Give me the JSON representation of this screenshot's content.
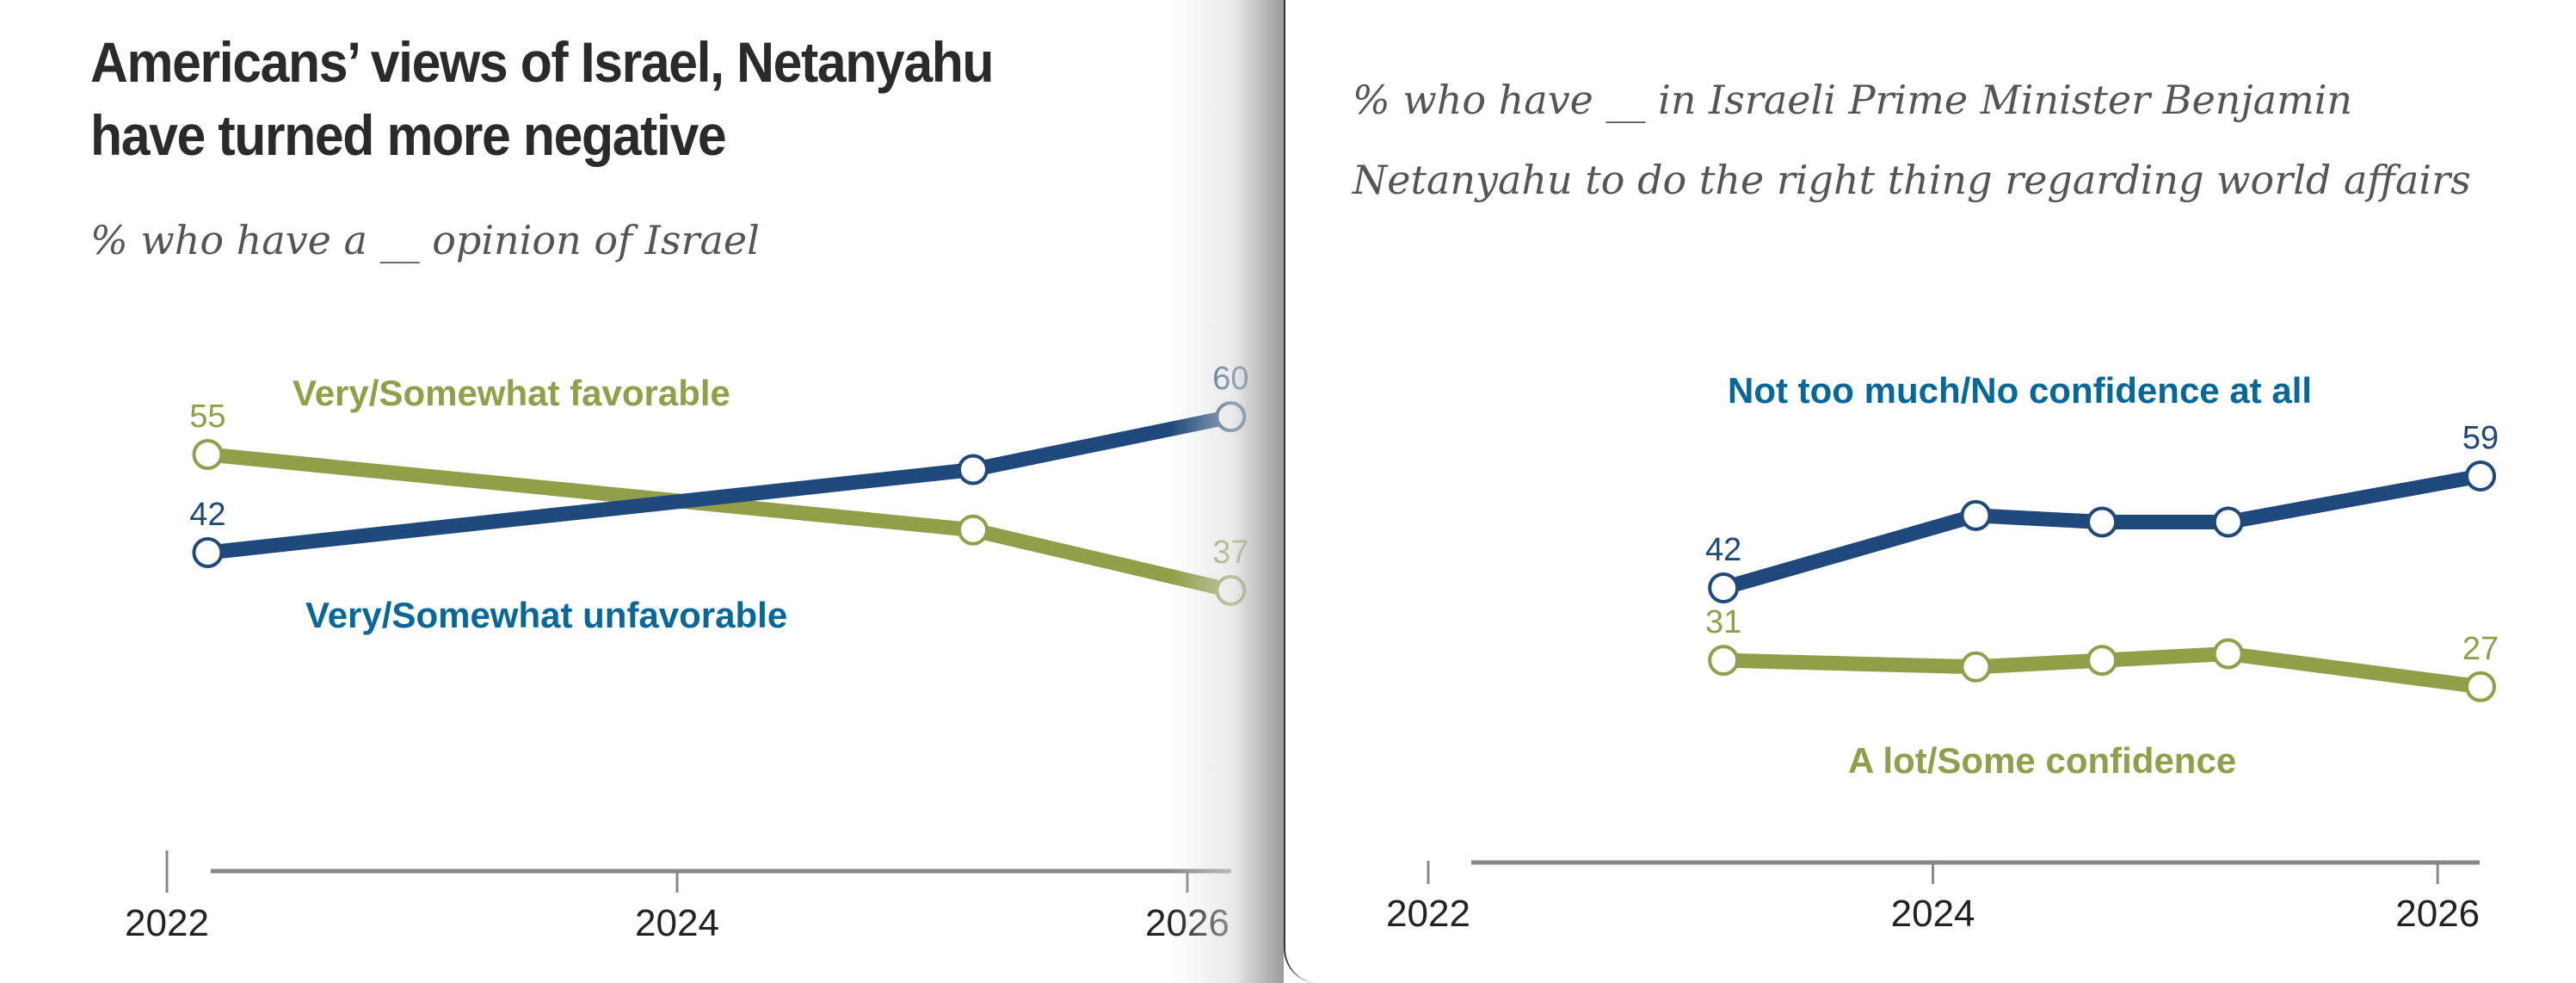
{
  "colors": {
    "unfavorable": "#1f497d",
    "favorable": "#939e48",
    "unfavorable_label": "#05679a",
    "axis": "#888888",
    "title": "#2a2a2a",
    "subtitle": "#555555"
  },
  "header": {
    "title_line1": "Americans’ views of Israel, Netanyahu",
    "title_line2": "have turned more negative"
  },
  "chart_data": [
    {
      "type": "line",
      "title": "Americans’ views of Israel, Netanyahu have turned more negative",
      "subtitle": "% who have a __ opinion of Israel",
      "xlabel": "",
      "ylabel": "",
      "x_ticks": [
        "2022",
        "2024",
        "2026"
      ],
      "xlim": [
        2022,
        2026.2
      ],
      "ylim": [
        30,
        65
      ],
      "grid": false,
      "x": [
        2022.16,
        2025.16,
        2026.17
      ],
      "series": [
        {
          "name": "Very/Somewhat favorable",
          "color": "#939e48",
          "values": [
            55,
            45,
            37
          ],
          "labeled": [
            true,
            false,
            true
          ],
          "label_position": "top-center"
        },
        {
          "name": "Very/Somewhat unfavorable",
          "color": "#1f497d",
          "values": [
            42,
            53,
            60
          ],
          "labeled": [
            true,
            false,
            true
          ],
          "label_position": "bottom-center"
        }
      ]
    },
    {
      "type": "line",
      "subtitle": "% who have __ in Israeli Prime Minister Benjamin Netanyahu to do the right thing regarding world affairs",
      "xlabel": "",
      "ylabel": "",
      "x_ticks": [
        "2022",
        "2024",
        "2026"
      ],
      "xlim": [
        2022,
        2026.2
      ],
      "ylim": [
        15,
        70
      ],
      "grid": false,
      "x": [
        2023.17,
        2024.17,
        2024.67,
        2025.17,
        2026.17
      ],
      "series": [
        {
          "name": "Not too much/No confidence at all",
          "color": "#1f497d",
          "values": [
            42,
            53,
            52,
            52,
            59
          ],
          "labeled": [
            true,
            false,
            false,
            false,
            true
          ],
          "label_position": "top-center"
        },
        {
          "name": "A lot/Some confidence",
          "color": "#939e48",
          "values": [
            31,
            30,
            31,
            32,
            27
          ],
          "labeled": [
            true,
            false,
            false,
            false,
            true
          ],
          "label_position": "bottom-center"
        }
      ]
    }
  ]
}
